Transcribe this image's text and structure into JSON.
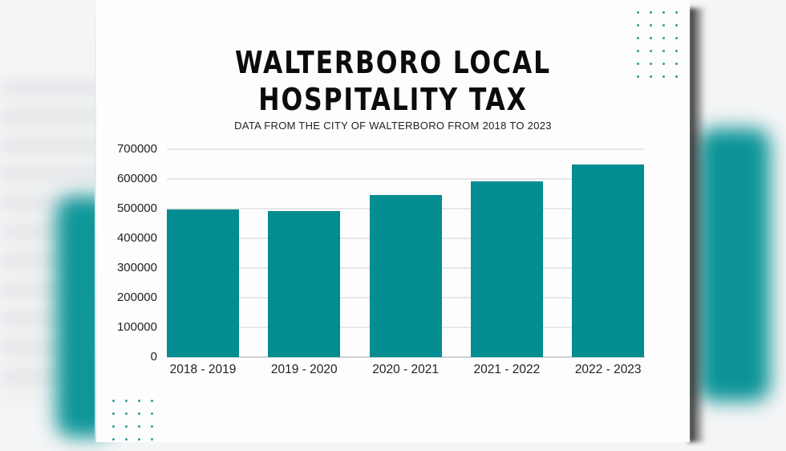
{
  "chart_data": {
    "type": "bar",
    "title": "WALTERBORO LOCAL HOSPITALITY TAX",
    "subtitle": "DATA FROM THE CITY OF WALTERBORO FROM 2018 TO 2023",
    "categories": [
      "2018 - 2019",
      "2019 - 2020",
      "2020 - 2021",
      "2021 - 2022",
      "2022 - 2023"
    ],
    "values": [
      497000,
      492000,
      545000,
      591000,
      648000
    ],
    "xlabel": "",
    "ylabel": "",
    "ylim": [
      0,
      700000
    ],
    "yticks": [
      "700000",
      "600000",
      "500000",
      "400000",
      "300000",
      "200000",
      "100000",
      "0"
    ],
    "grid": true,
    "legend": null,
    "bar_color": "#028d91"
  },
  "header": {
    "title_line1": "WALTERBORO LOCAL",
    "title_line2": "HOSPITALITY TAX",
    "subtitle": "DATA FROM THE CITY OF WALTERBORO FROM 2018 TO 2023"
  },
  "colors": {
    "accent": "#028d91",
    "text": "#0c0c0c",
    "grid": "#e6e7e8",
    "card": "#fdfdfd"
  }
}
